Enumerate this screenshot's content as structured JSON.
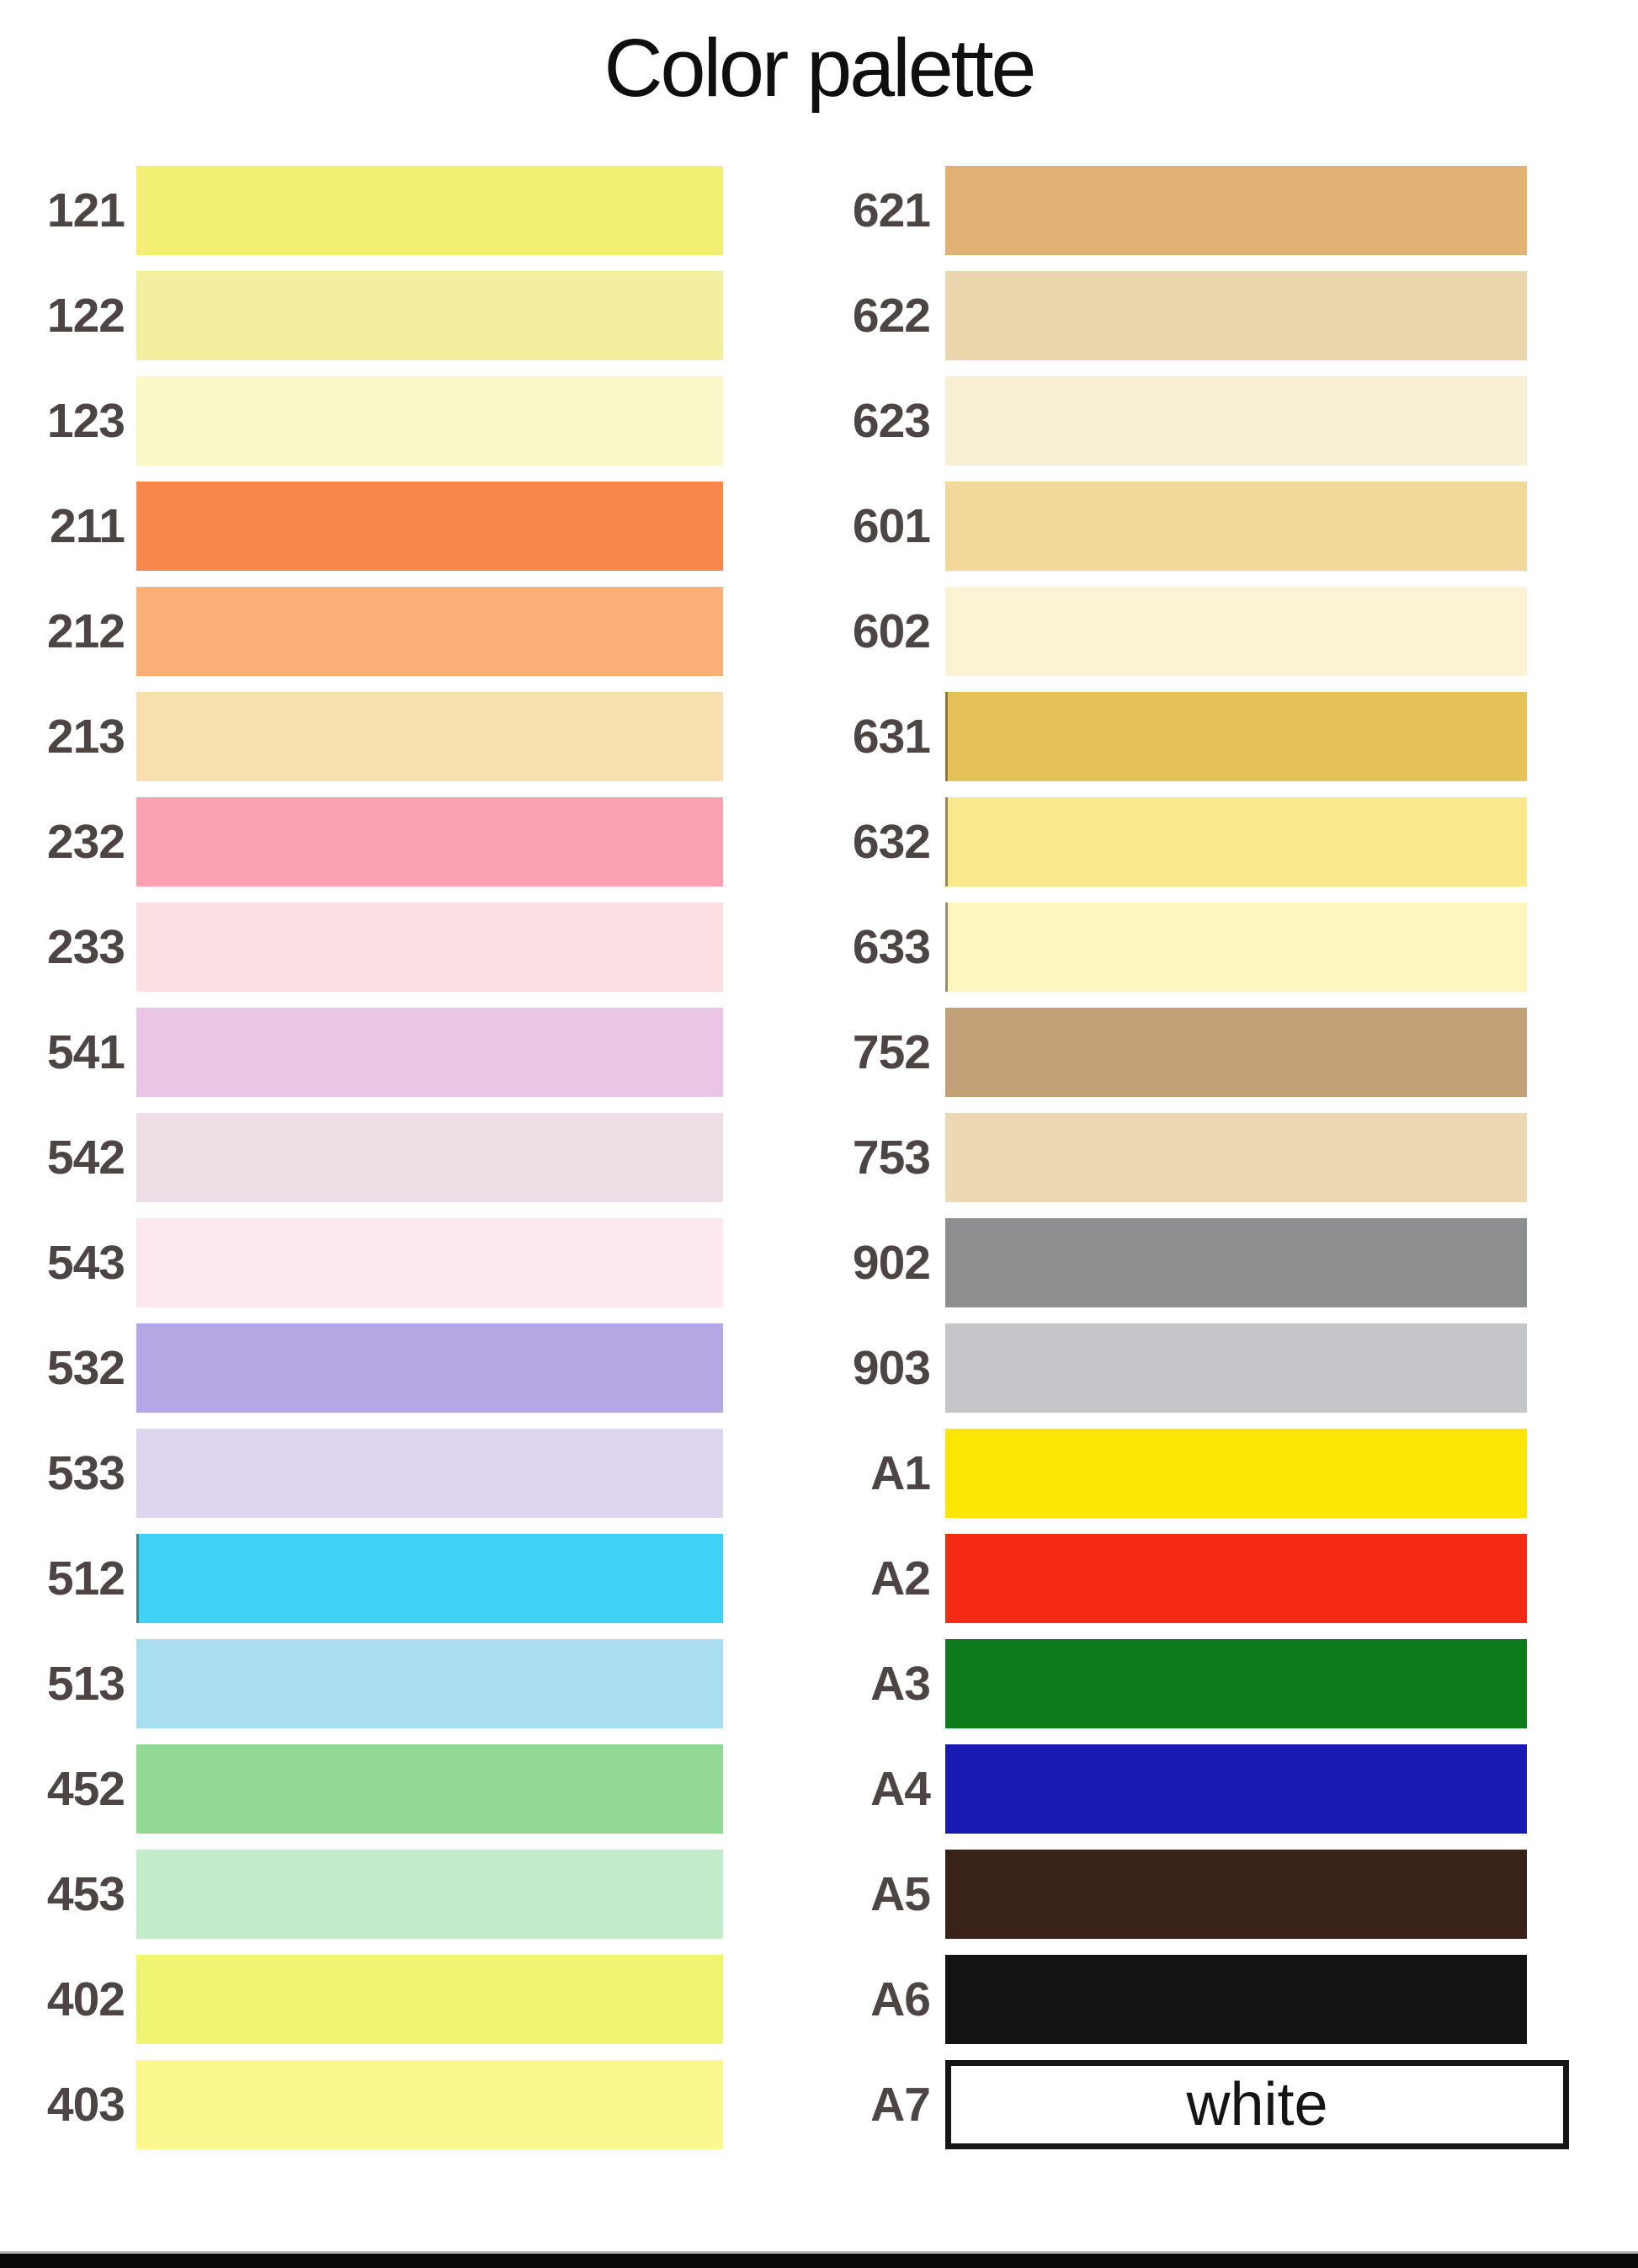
{
  "title": "Color palette",
  "theme": {
    "label_color": "#4d4544",
    "footer_bar_color": "#0a0a0a",
    "page_background": "#ffffff",
    "a7_border_color": "#161616"
  },
  "palette": {
    "left": [
      {
        "code": "121",
        "color": "#f3ef75"
      },
      {
        "code": "122",
        "color": "#f2efa0"
      },
      {
        "code": "123",
        "color": "#faf7c8"
      },
      {
        "code": "211",
        "color": "#f7874b"
      },
      {
        "code": "212",
        "color": "#fbb07a"
      },
      {
        "code": "213",
        "color": "#f8dfae"
      },
      {
        "code": "232",
        "color": "#faa2b2"
      },
      {
        "code": "233",
        "color": "#fcdfe2"
      },
      {
        "code": "541",
        "color": "#eac5e5"
      },
      {
        "code": "542",
        "color": "#eedfe7"
      },
      {
        "code": "543",
        "color": "#fce8ee"
      },
      {
        "code": "532",
        "color": "#b5a7e4"
      },
      {
        "code": "533",
        "color": "#ded5ee"
      },
      {
        "code": "512",
        "color": "#40d2f4",
        "left_edge": true
      },
      {
        "code": "513",
        "color": "#a9def0"
      },
      {
        "code": "452",
        "color": "#92d996"
      },
      {
        "code": "453",
        "color": "#c3ecca"
      },
      {
        "code": "402",
        "color": "#f0f473"
      },
      {
        "code": "403",
        "color": "#faf88f"
      }
    ],
    "right": [
      {
        "code": "621",
        "color": "#e2b274"
      },
      {
        "code": "622",
        "color": "#ecd6ae"
      },
      {
        "code": "623",
        "color": "#f8efd5"
      },
      {
        "code": "601",
        "color": "#f3d89b"
      },
      {
        "code": "602",
        "color": "#fcf3d4"
      },
      {
        "code": "631",
        "color": "#e5c258",
        "left_edge": true
      },
      {
        "code": "632",
        "color": "#f9e98c",
        "left_edge": true
      },
      {
        "code": "633",
        "color": "#fdf6bf",
        "left_edge": true
      },
      {
        "code": "752",
        "color": "#c2a176"
      },
      {
        "code": "753",
        "color": "#ecd8b2"
      },
      {
        "code": "902",
        "color": "#8c8e90"
      },
      {
        "code": "903",
        "color": "#c4c6c9"
      },
      {
        "code": "A1",
        "color": "#fde604"
      },
      {
        "code": "A2",
        "color": "#f42a14"
      },
      {
        "code": "A3",
        "color": "#0d7a1b"
      },
      {
        "code": "A4",
        "color": "#181ab2"
      },
      {
        "code": "A5",
        "color": "#392318"
      },
      {
        "code": "A6",
        "color": "#131313"
      },
      {
        "code": "A7",
        "color": "#ffffff",
        "text": "white",
        "bordered": true
      }
    ]
  }
}
